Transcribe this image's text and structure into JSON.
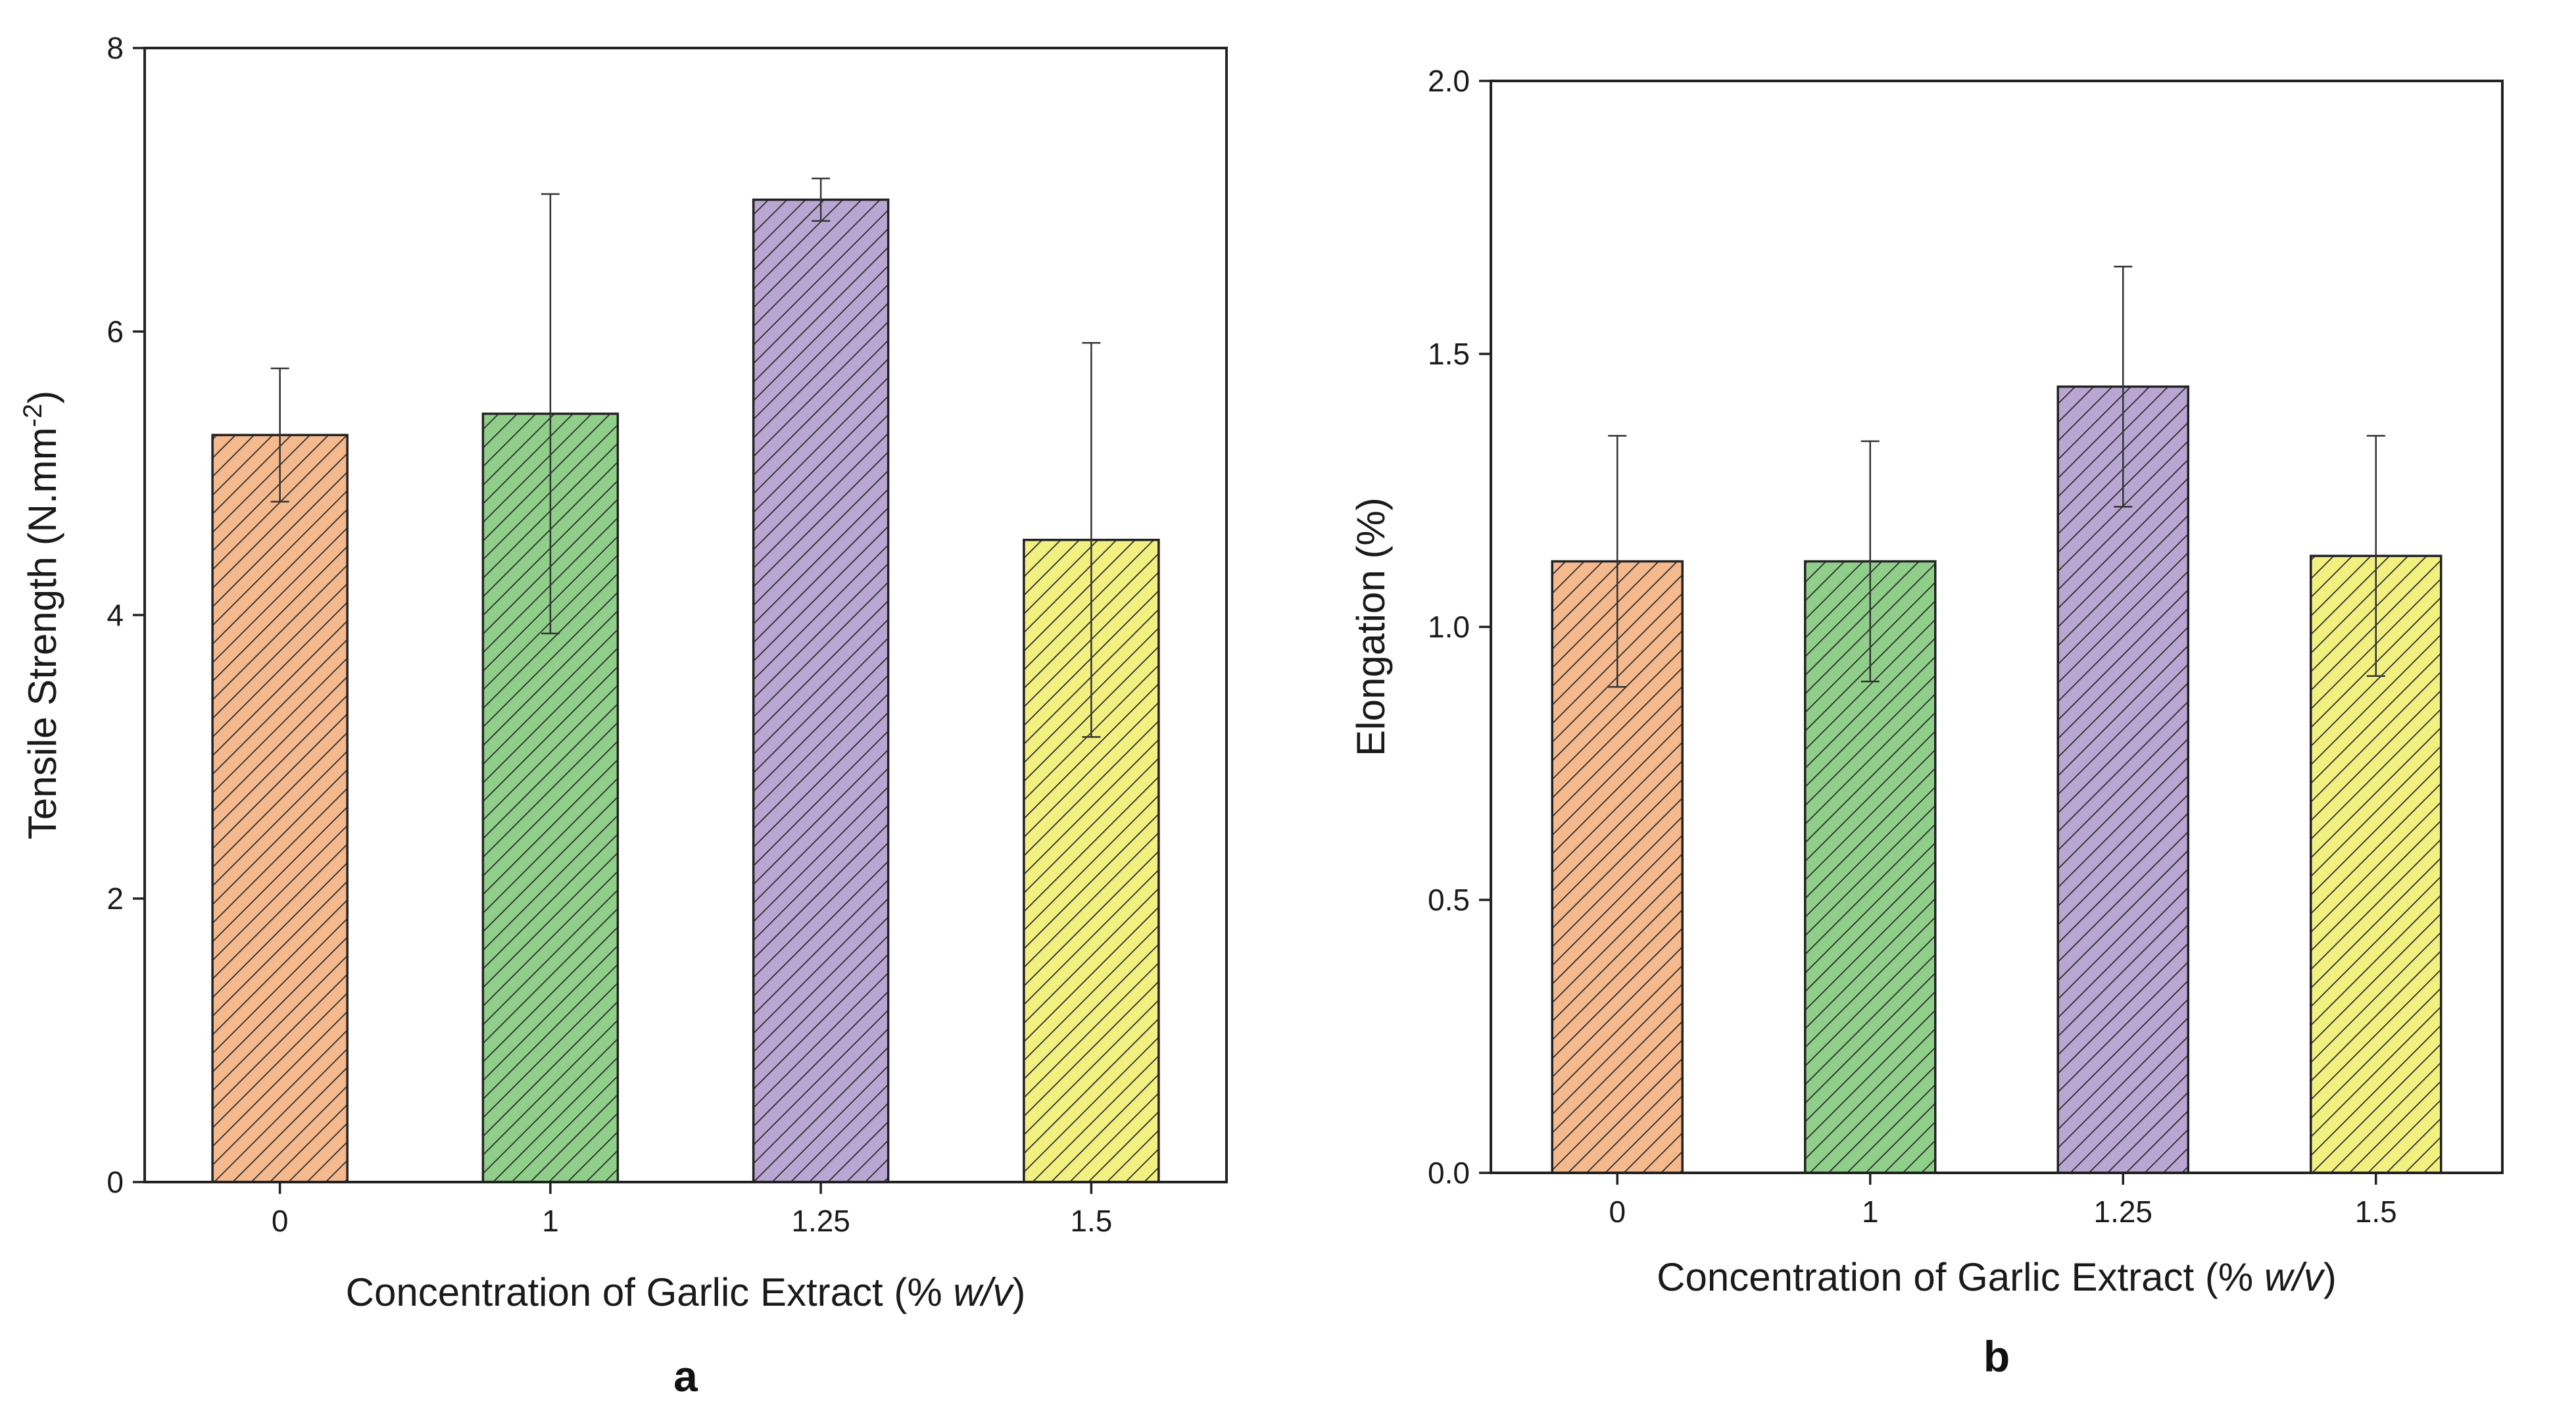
{
  "chart_data": [
    {
      "type": "bar",
      "panel_label": "a",
      "categories": [
        "0",
        "1",
        "1.25",
        "1.5"
      ],
      "values": [
        5.27,
        5.42,
        6.93,
        4.53
      ],
      "errors": [
        0.47,
        1.55,
        0.15,
        1.39
      ],
      "colors": [
        "#f5b98e",
        "#8fcf8a",
        "#b9a6d2",
        "#f2f080"
      ],
      "ylabel_main": "Tensile Strength (N.mm",
      "ylabel_sup": "-2",
      "ylabel_end": ")",
      "xlabel_main": "Concentration of Garlic Extract (% ",
      "xlabel_italic": "w/v",
      "xlabel_end": ")",
      "ylim": [
        0,
        8
      ],
      "yticks": [
        0,
        2,
        4,
        6,
        8
      ],
      "ytick_labels": [
        "0",
        "2",
        "4",
        "6",
        "8"
      ]
    },
    {
      "type": "bar",
      "panel_label": "b",
      "categories": [
        "0",
        "1",
        "1.25",
        "1.5"
      ],
      "values": [
        1.12,
        1.12,
        1.44,
        1.13
      ],
      "errors": [
        0.23,
        0.22,
        0.22,
        0.22
      ],
      "colors": [
        "#f5b98e",
        "#8fcf8a",
        "#b9a6d2",
        "#f2f080"
      ],
      "ylabel_main": "Elongation (%)",
      "xlabel_main": "Concentration of Garlic Extract (% ",
      "xlabel_italic": "w/v",
      "xlabel_end": ")",
      "ylim": [
        0,
        2
      ],
      "yticks": [
        0,
        0.5,
        1,
        1.5,
        2
      ],
      "ytick_labels": [
        "0.0",
        "0.5",
        "1.0",
        "1.5",
        "2.0"
      ]
    }
  ]
}
